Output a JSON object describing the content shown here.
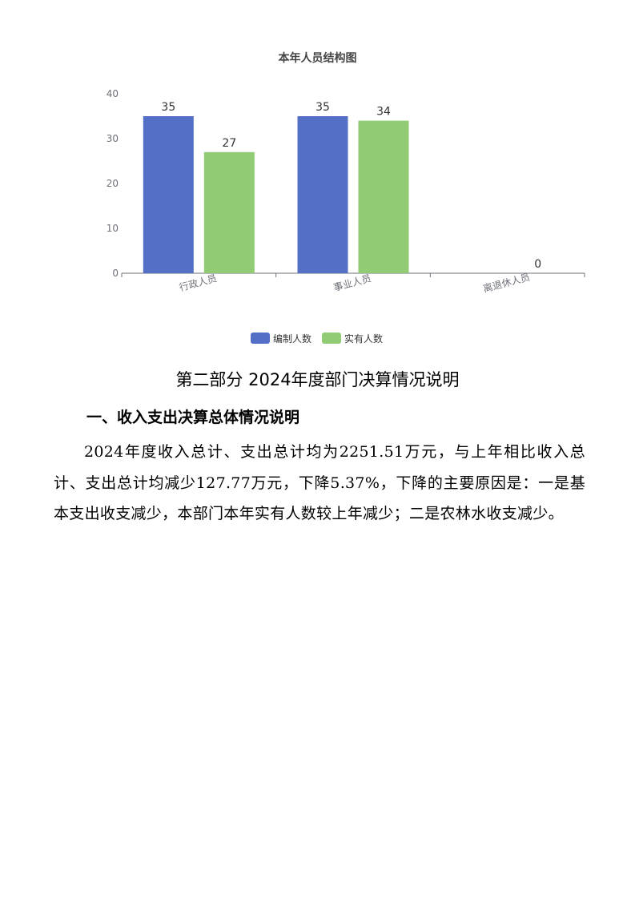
{
  "chart_data": {
    "type": "bar",
    "title": "本年人员结构图",
    "categories": [
      "行政人员",
      "事业人员",
      "离退休人员"
    ],
    "series": [
      {
        "name": "编制人数",
        "color": "#5470c6",
        "values": [
          35,
          35,
          null
        ]
      },
      {
        "name": "实有人数",
        "color": "#91cc75",
        "values": [
          27,
          34,
          0
        ]
      }
    ],
    "yticks": [
      0,
      10,
      20,
      30,
      40
    ],
    "ylim": [
      0,
      40
    ],
    "xlabel": "",
    "ylabel": "",
    "grid": false,
    "legend_position": "bottom"
  },
  "document": {
    "section_title": "第二部分 2024年度部门决算情况说明",
    "subsection_title": "一、收入支出决算总体情况说明",
    "paragraph": "2024年度收入总计、支出总计均为2251.51万元，与上年相比收入总计、支出总计均减少127.77万元，下降5.37%，下降的主要原因是：一是基本支出收支减少，本部门本年实有人数较上年减少；二是农林水收支减少。"
  }
}
